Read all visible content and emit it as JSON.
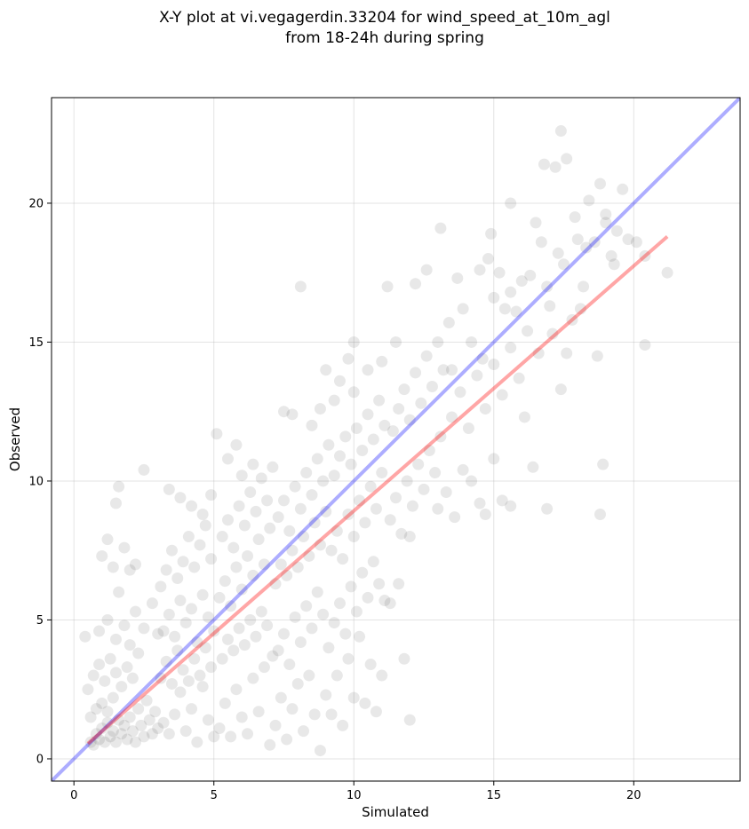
{
  "chart_data": {
    "type": "scatter",
    "title": [
      "X-Y plot at vi.vegagerdin.33204 for wind_speed_at_10m_agl",
      "from 18-24h during spring"
    ],
    "xlabel": "Simulated",
    "ylabel": "Observed",
    "xlim": [
      -0.8,
      23.8
    ],
    "ylim": [
      -0.8,
      23.8
    ],
    "xticks": [
      0,
      5,
      10,
      15,
      20
    ],
    "yticks": [
      0,
      5,
      10,
      15,
      20
    ],
    "grid": true,
    "point_color": "#000000",
    "point_alpha": 0.09,
    "lines": [
      {
        "kind": "identity",
        "color": "#0000ff",
        "alpha": 0.32,
        "x": [
          -0.8,
          23.8
        ],
        "y": [
          -0.8,
          23.8
        ]
      },
      {
        "kind": "regression",
        "color": "#ff0000",
        "alpha": 0.35,
        "x": [
          0.5,
          21.2
        ],
        "y": [
          0.55,
          18.8
        ]
      }
    ],
    "points": [
      [
        0.6,
        0.6
      ],
      [
        0.7,
        0.5
      ],
      [
        0.8,
        0.9
      ],
      [
        0.9,
        0.7
      ],
      [
        1.0,
        1.1
      ],
      [
        1.1,
        0.6
      ],
      [
        1.2,
        1.3
      ],
      [
        1.3,
        0.8
      ],
      [
        1.4,
        1.0
      ],
      [
        1.5,
        0.6
      ],
      [
        0.6,
        1.5
      ],
      [
        0.8,
        1.8
      ],
      [
        1.0,
        2.0
      ],
      [
        1.2,
        1.7
      ],
      [
        1.4,
        2.2
      ],
      [
        1.6,
        1.4
      ],
      [
        1.7,
        0.9
      ],
      [
        1.8,
        1.2
      ],
      [
        1.9,
        0.7
      ],
      [
        2.0,
        1.5
      ],
      [
        2.1,
        1.0
      ],
      [
        2.2,
        0.6
      ],
      [
        2.3,
        1.8
      ],
      [
        2.4,
        1.2
      ],
      [
        2.5,
        0.8
      ],
      [
        2.6,
        2.1
      ],
      [
        2.7,
        1.4
      ],
      [
        2.8,
        0.9
      ],
      [
        2.9,
        1.7
      ],
      [
        3.0,
        1.1
      ],
      [
        0.5,
        2.5
      ],
      [
        0.7,
        3.0
      ],
      [
        0.9,
        3.4
      ],
      [
        1.1,
        2.8
      ],
      [
        1.3,
        3.6
      ],
      [
        1.5,
        3.1
      ],
      [
        1.7,
        2.6
      ],
      [
        1.9,
        3.3
      ],
      [
        2.1,
        2.9
      ],
      [
        2.3,
        3.8
      ],
      [
        0.4,
        4.4
      ],
      [
        0.9,
        4.6
      ],
      [
        1.2,
        5.0
      ],
      [
        1.5,
        4.3
      ],
      [
        1.8,
        4.8
      ],
      [
        2.0,
        4.1
      ],
      [
        2.2,
        5.3
      ],
      [
        2.5,
        4.7
      ],
      [
        2.8,
        5.6
      ],
      [
        3.0,
        4.5
      ],
      [
        1.0,
        7.3
      ],
      [
        1.2,
        7.9
      ],
      [
        1.4,
        6.9
      ],
      [
        1.6,
        6.0
      ],
      [
        1.8,
        7.6
      ],
      [
        2.0,
        6.8
      ],
      [
        1.5,
        9.2
      ],
      [
        1.6,
        9.8
      ],
      [
        2.5,
        10.4
      ],
      [
        2.2,
        7.0
      ],
      [
        3.2,
        1.3
      ],
      [
        3.4,
        0.9
      ],
      [
        3.6,
        1.6
      ],
      [
        3.8,
        2.4
      ],
      [
        4.0,
        1.0
      ],
      [
        4.2,
        1.8
      ],
      [
        4.4,
        0.6
      ],
      [
        4.6,
        2.6
      ],
      [
        4.8,
        1.4
      ],
      [
        5.0,
        0.8
      ],
      [
        3.1,
        2.9
      ],
      [
        3.3,
        3.5
      ],
      [
        3.5,
        2.7
      ],
      [
        3.7,
        3.9
      ],
      [
        3.9,
        3.2
      ],
      [
        4.1,
        2.8
      ],
      [
        4.3,
        3.6
      ],
      [
        4.5,
        3.0
      ],
      [
        4.7,
        4.0
      ],
      [
        4.9,
        3.3
      ],
      [
        3.2,
        4.6
      ],
      [
        3.4,
        5.2
      ],
      [
        3.6,
        4.4
      ],
      [
        3.8,
        5.7
      ],
      [
        4.0,
        4.9
      ],
      [
        4.2,
        5.4
      ],
      [
        4.4,
        4.2
      ],
      [
        4.6,
        5.9
      ],
      [
        4.8,
        5.1
      ],
      [
        5.0,
        4.6
      ],
      [
        3.1,
        6.2
      ],
      [
        3.3,
        6.8
      ],
      [
        3.5,
        7.5
      ],
      [
        3.7,
        6.5
      ],
      [
        3.9,
        7.1
      ],
      [
        4.1,
        8.0
      ],
      [
        4.3,
        6.9
      ],
      [
        4.5,
        7.7
      ],
      [
        4.7,
        8.4
      ],
      [
        4.9,
        7.2
      ],
      [
        3.4,
        9.7
      ],
      [
        3.8,
        9.4
      ],
      [
        4.2,
        9.1
      ],
      [
        4.6,
        8.8
      ],
      [
        4.9,
        9.5
      ],
      [
        5.1,
        11.7
      ],
      [
        5.5,
        10.8
      ],
      [
        5.8,
        11.3
      ],
      [
        6.0,
        10.2
      ],
      [
        6.4,
        10.6
      ],
      [
        5.2,
        1.1
      ],
      [
        5.4,
        2.0
      ],
      [
        5.6,
        0.8
      ],
      [
        5.8,
        2.5
      ],
      [
        6.0,
        1.5
      ],
      [
        6.2,
        0.9
      ],
      [
        6.4,
        2.9
      ],
      [
        6.6,
        1.7
      ],
      [
        6.8,
        3.3
      ],
      [
        7.0,
        0.5
      ],
      [
        5.3,
        3.6
      ],
      [
        5.5,
        4.3
      ],
      [
        5.7,
        3.9
      ],
      [
        5.9,
        4.7
      ],
      [
        6.1,
        4.1
      ],
      [
        6.3,
        5.0
      ],
      [
        6.5,
        4.4
      ],
      [
        6.7,
        5.3
      ],
      [
        6.9,
        4.8
      ],
      [
        7.1,
        3.7
      ],
      [
        5.2,
        5.8
      ],
      [
        5.4,
        6.4
      ],
      [
        5.6,
        5.5
      ],
      [
        5.8,
        6.9
      ],
      [
        6.0,
        6.1
      ],
      [
        6.2,
        7.3
      ],
      [
        6.4,
        6.6
      ],
      [
        6.6,
        7.9
      ],
      [
        6.8,
        7.0
      ],
      [
        7.0,
        8.3
      ],
      [
        5.3,
        8.0
      ],
      [
        5.5,
        8.6
      ],
      [
        5.7,
        7.6
      ],
      [
        5.9,
        9.1
      ],
      [
        6.1,
        8.4
      ],
      [
        6.3,
        9.6
      ],
      [
        6.5,
        8.9
      ],
      [
        6.7,
        10.1
      ],
      [
        6.9,
        9.3
      ],
      [
        7.1,
        10.5
      ],
      [
        7.2,
        1.2
      ],
      [
        7.4,
        2.2
      ],
      [
        7.6,
        0.7
      ],
      [
        7.8,
        1.8
      ],
      [
        8.0,
        2.7
      ],
      [
        8.2,
        1.0
      ],
      [
        8.4,
        3.0
      ],
      [
        8.6,
        1.6
      ],
      [
        8.8,
        0.3
      ],
      [
        9.0,
        2.3
      ],
      [
        7.3,
        3.9
      ],
      [
        7.5,
        4.5
      ],
      [
        7.7,
        3.4
      ],
      [
        7.9,
        5.1
      ],
      [
        8.1,
        4.2
      ],
      [
        8.3,
        5.5
      ],
      [
        8.5,
        4.7
      ],
      [
        8.7,
        6.0
      ],
      [
        8.9,
        5.2
      ],
      [
        9.1,
        4.0
      ],
      [
        7.2,
        6.3
      ],
      [
        7.4,
        7.0
      ],
      [
        7.6,
        6.6
      ],
      [
        7.8,
        7.5
      ],
      [
        8.0,
        6.9
      ],
      [
        8.2,
        8.0
      ],
      [
        8.4,
        7.3
      ],
      [
        8.6,
        8.5
      ],
      [
        8.8,
        7.7
      ],
      [
        9.0,
        8.9
      ],
      [
        7.3,
        8.7
      ],
      [
        7.5,
        9.3
      ],
      [
        7.7,
        8.2
      ],
      [
        7.9,
        9.8
      ],
      [
        8.1,
        9.0
      ],
      [
        8.3,
        10.3
      ],
      [
        8.5,
        9.5
      ],
      [
        8.7,
        10.8
      ],
      [
        8.9,
        10.0
      ],
      [
        9.1,
        11.3
      ],
      [
        7.5,
        12.5
      ],
      [
        7.8,
        12.4
      ],
      [
        8.1,
        17.0
      ],
      [
        8.5,
        12.0
      ],
      [
        8.8,
        12.6
      ],
      [
        9.0,
        14.0
      ],
      [
        9.3,
        12.9
      ],
      [
        9.5,
        13.6
      ],
      [
        9.8,
        14.4
      ],
      [
        10.0,
        13.2
      ],
      [
        9.2,
        1.6
      ],
      [
        9.4,
        3.0
      ],
      [
        9.6,
        1.2
      ],
      [
        9.8,
        3.6
      ],
      [
        10.0,
        2.2
      ],
      [
        10.2,
        4.4
      ],
      [
        10.4,
        2.0
      ],
      [
        10.6,
        3.4
      ],
      [
        10.8,
        1.7
      ],
      [
        11.0,
        3.0
      ],
      [
        9.3,
        4.9
      ],
      [
        9.5,
        5.6
      ],
      [
        9.7,
        4.5
      ],
      [
        9.9,
        6.2
      ],
      [
        10.1,
        5.3
      ],
      [
        10.3,
        6.7
      ],
      [
        10.5,
        5.8
      ],
      [
        10.7,
        7.1
      ],
      [
        10.9,
        6.3
      ],
      [
        11.1,
        5.7
      ],
      [
        9.2,
        7.5
      ],
      [
        9.4,
        8.2
      ],
      [
        9.6,
        7.2
      ],
      [
        9.8,
        8.8
      ],
      [
        10.0,
        8.0
      ],
      [
        10.2,
        9.3
      ],
      [
        10.4,
        8.5
      ],
      [
        10.6,
        9.8
      ],
      [
        10.8,
        9.0
      ],
      [
        11.0,
        10.3
      ],
      [
        9.3,
        10.2
      ],
      [
        9.5,
        10.9
      ],
      [
        9.7,
        11.6
      ],
      [
        9.9,
        10.6
      ],
      [
        10.1,
        11.9
      ],
      [
        10.3,
        11.1
      ],
      [
        10.5,
        12.4
      ],
      [
        10.7,
        11.5
      ],
      [
        10.9,
        12.9
      ],
      [
        11.1,
        12.0
      ],
      [
        10.0,
        15.0
      ],
      [
        10.5,
        14.0
      ],
      [
        11.0,
        14.3
      ],
      [
        11.2,
        17.0
      ],
      [
        11.5,
        15.0
      ],
      [
        11.8,
        3.6
      ],
      [
        12.0,
        1.4
      ],
      [
        11.3,
        5.6
      ],
      [
        11.6,
        6.3
      ],
      [
        12.0,
        8.0
      ],
      [
        11.3,
        8.6
      ],
      [
        11.5,
        9.4
      ],
      [
        11.7,
        8.1
      ],
      [
        11.9,
        10.0
      ],
      [
        12.1,
        9.1
      ],
      [
        12.3,
        10.6
      ],
      [
        12.5,
        9.7
      ],
      [
        12.7,
        11.1
      ],
      [
        12.9,
        10.3
      ],
      [
        13.1,
        11.6
      ],
      [
        11.4,
        11.8
      ],
      [
        11.6,
        12.6
      ],
      [
        11.8,
        13.3
      ],
      [
        12.0,
        12.2
      ],
      [
        12.2,
        13.9
      ],
      [
        12.4,
        12.8
      ],
      [
        12.6,
        14.5
      ],
      [
        12.8,
        13.4
      ],
      [
        13.0,
        15.0
      ],
      [
        13.2,
        14.0
      ],
      [
        12.2,
        17.1
      ],
      [
        12.6,
        17.6
      ],
      [
        13.1,
        19.1
      ],
      [
        13.4,
        15.7
      ],
      [
        13.7,
        17.3
      ],
      [
        13.9,
        16.2
      ],
      [
        14.2,
        15.0
      ],
      [
        14.5,
        17.6
      ],
      [
        14.8,
        18.0
      ],
      [
        15.0,
        16.6
      ],
      [
        13.0,
        9.0
      ],
      [
        13.3,
        9.6
      ],
      [
        13.6,
        8.7
      ],
      [
        13.9,
        10.4
      ],
      [
        14.2,
        10.0
      ],
      [
        14.5,
        9.2
      ],
      [
        14.7,
        8.8
      ],
      [
        15.0,
        10.8
      ],
      [
        15.3,
        9.3
      ],
      [
        15.6,
        9.1
      ],
      [
        13.5,
        12.3
      ],
      [
        13.8,
        13.2
      ],
      [
        14.1,
        11.9
      ],
      [
        14.4,
        13.8
      ],
      [
        14.7,
        12.6
      ],
      [
        15.0,
        14.2
      ],
      [
        15.3,
        13.1
      ],
      [
        15.6,
        14.8
      ],
      [
        15.9,
        13.7
      ],
      [
        16.2,
        15.4
      ],
      [
        15.4,
        16.2
      ],
      [
        15.6,
        16.8
      ],
      [
        15.6,
        20.0
      ],
      [
        16.0,
        17.2
      ],
      [
        16.3,
        17.4
      ],
      [
        16.5,
        19.3
      ],
      [
        16.7,
        18.6
      ],
      [
        16.9,
        17.0
      ],
      [
        17.1,
        15.3
      ],
      [
        17.3,
        18.2
      ],
      [
        14.9,
        18.9
      ],
      [
        15.2,
        17.5
      ],
      [
        15.8,
        16.1
      ],
      [
        16.1,
        12.3
      ],
      [
        16.4,
        10.5
      ],
      [
        16.9,
        9.0
      ],
      [
        17.4,
        13.3
      ],
      [
        17.6,
        14.6
      ],
      [
        17.8,
        15.8
      ],
      [
        18.1,
        16.2
      ],
      [
        16.8,
        21.4
      ],
      [
        17.2,
        21.3
      ],
      [
        17.4,
        22.6
      ],
      [
        17.6,
        21.6
      ],
      [
        17.9,
        19.5
      ],
      [
        18.0,
        18.7
      ],
      [
        18.3,
        18.4
      ],
      [
        18.4,
        20.1
      ],
      [
        18.6,
        18.6
      ],
      [
        18.8,
        20.7
      ],
      [
        19.0,
        19.6
      ],
      [
        19.2,
        18.1
      ],
      [
        19.3,
        17.8
      ],
      [
        19.4,
        19.0
      ],
      [
        19.6,
        20.5
      ],
      [
        19.8,
        18.7
      ],
      [
        20.1,
        18.6
      ],
      [
        20.4,
        18.1
      ],
      [
        20.4,
        14.9
      ],
      [
        21.2,
        17.5
      ],
      [
        18.7,
        14.5
      ],
      [
        18.9,
        10.6
      ],
      [
        18.8,
        8.8
      ],
      [
        17.5,
        17.8
      ],
      [
        18.2,
        17.0
      ],
      [
        19.0,
        19.3
      ],
      [
        16.6,
        14.6
      ],
      [
        17.0,
        16.3
      ],
      [
        14.6,
        14.4
      ],
      [
        13.5,
        14.0
      ]
    ]
  }
}
